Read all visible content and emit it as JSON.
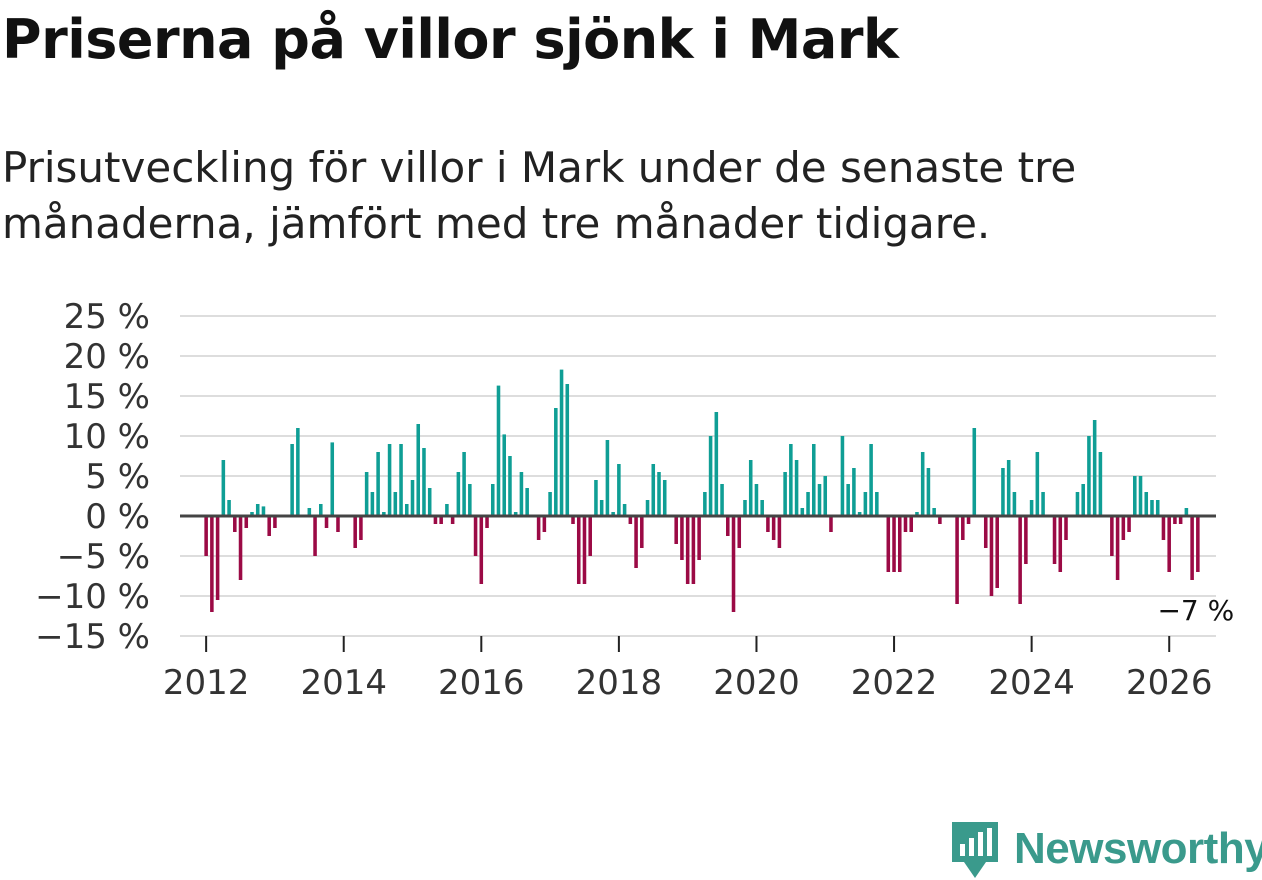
{
  "header": {
    "title": "Priserna på villor sjönk i Mark",
    "subtitle": "Prisutveckling för villor i Mark under de senaste tre månaderna, jämfört med tre månader tidigare."
  },
  "brand": {
    "name": "Newsworthy",
    "color": "#3a9a8c"
  },
  "colors": {
    "positive": "#0f9e95",
    "negative": "#9b0a45",
    "grid": "#dddddd",
    "zero": "#444444"
  },
  "chart_data": {
    "type": "bar",
    "title": "Priserna på villor sjönk i Mark",
    "x_start": 2012.0,
    "x_step": 0.08333,
    "values": [
      -5,
      -12,
      -10.5,
      7,
      2,
      -2,
      -8,
      -1.5,
      0.5,
      1.5,
      1.2,
      -2.5,
      -1.5,
      0,
      0,
      9,
      11,
      0,
      1,
      -5,
      1.5,
      -1.5,
      9.2,
      -2,
      0,
      0,
      -4,
      -3,
      5.5,
      3,
      8,
      0.5,
      9,
      3,
      9,
      1.5,
      4.5,
      11.5,
      8.5,
      3.5,
      -1,
      -1,
      1.5,
      -1,
      5.5,
      8,
      4,
      -5,
      -8.5,
      -1.5,
      4,
      16.3,
      10.2,
      7.5,
      0.5,
      5.5,
      3.5,
      0,
      -3,
      -2,
      3,
      13.5,
      18.3,
      16.5,
      -1,
      -8.5,
      -8.5,
      -5,
      4.5,
      2,
      9.5,
      0.5,
      6.5,
      1.5,
      -1,
      -6.5,
      -4,
      2,
      6.5,
      5.5,
      4.5,
      0,
      -3.5,
      -5.5,
      -8.5,
      -8.5,
      -5.5,
      3,
      10,
      13,
      4,
      -2.5,
      -12,
      -4,
      2,
      7,
      4,
      2,
      -2,
      -3,
      -4,
      5.5,
      9,
      7,
      1,
      3,
      9,
      4,
      5,
      -2,
      0,
      10,
      4,
      6,
      0.5,
      3,
      9,
      3,
      0,
      -7,
      -7,
      -7,
      -2,
      -2,
      0.5,
      8,
      6,
      1,
      -1,
      0,
      0,
      -11,
      -3,
      -1,
      11,
      0,
      -4,
      -10,
      -9,
      6,
      7,
      3,
      -11,
      -6,
      2,
      8,
      3,
      0,
      -6,
      -7,
      -3,
      0,
      3,
      4,
      10,
      12,
      8,
      0,
      -5,
      -8,
      -3,
      -2,
      5,
      5,
      3,
      2,
      2,
      -3,
      -7,
      -1,
      -1,
      1,
      -8,
      -7
    ],
    "annotation": "−7 %",
    "ylim": [
      -15,
      25
    ],
    "yticks": [
      25,
      20,
      15,
      10,
      5,
      0,
      -5,
      -10,
      -15
    ],
    "ytick_labels": [
      "25 %",
      "20 %",
      "15 %",
      "10 %",
      "5 %",
      "0 %",
      "−5 %",
      "−10 %",
      "−15 %"
    ],
    "xlim": [
      2011.62,
      2026.68
    ],
    "xticks": [
      2012,
      2014,
      2016,
      2018,
      2020,
      2022,
      2024,
      2026
    ],
    "xtick_labels": [
      "2012",
      "2014",
      "2016",
      "2018",
      "2020",
      "2022",
      "2024",
      "2026"
    ],
    "xlabel": "",
    "ylabel": ""
  }
}
